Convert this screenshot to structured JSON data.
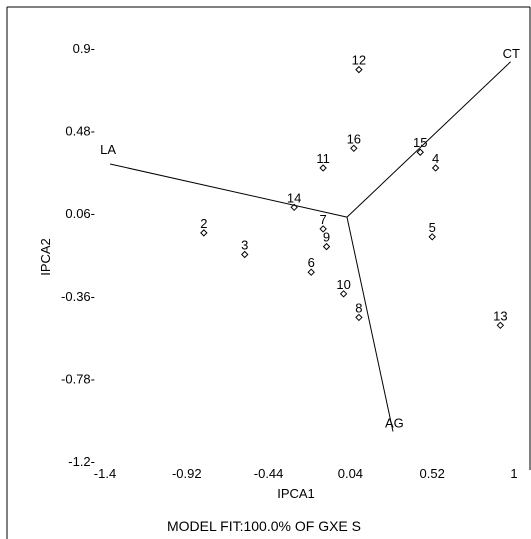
{
  "chart_data": {
    "type": "scatter",
    "subtype": "biplot",
    "title": "",
    "xlabel": "IPCA1",
    "ylabel": "IPCA2",
    "footer": "MODEL FIT:100.0% OF GXE S",
    "xlim": [
      -1.4,
      1.0
    ],
    "ylim": [
      -1.2,
      0.9
    ],
    "x_ticks": [
      "-1.4",
      "-0.92",
      "-0.44",
      "0.04",
      "0.52",
      "1"
    ],
    "x_tick_values": [
      -1.4,
      -0.92,
      -0.44,
      0.04,
      0.52,
      1.0
    ],
    "y_ticks": [
      "0.9",
      "0.48",
      "0.06",
      "-0.36",
      "-0.78",
      "-1.2"
    ],
    "y_tick_values": [
      0.9,
      0.48,
      0.06,
      -0.36,
      -0.78,
      -1.2
    ],
    "origin": [
      0.02,
      0.04
    ],
    "genotypes": [
      {
        "label": "2",
        "x": -0.82,
        "y": -0.04
      },
      {
        "label": "3",
        "x": -0.58,
        "y": -0.15
      },
      {
        "label": "4",
        "x": 0.54,
        "y": 0.29
      },
      {
        "label": "5",
        "x": 0.52,
        "y": -0.06
      },
      {
        "label": "6",
        "x": -0.19,
        "y": -0.24
      },
      {
        "label": "7",
        "x": -0.12,
        "y": -0.02
      },
      {
        "label": "8",
        "x": 0.09,
        "y": -0.47
      },
      {
        "label": "9",
        "x": -0.1,
        "y": -0.11
      },
      {
        "label": "10",
        "x": 0.0,
        "y": -0.35
      },
      {
        "label": "11",
        "x": -0.12,
        "y": 0.29
      },
      {
        "label": "12",
        "x": 0.09,
        "y": 0.79
      },
      {
        "label": "13",
        "x": 0.92,
        "y": -0.51
      },
      {
        "label": "14",
        "x": -0.29,
        "y": 0.09
      },
      {
        "label": "15",
        "x": 0.45,
        "y": 0.37
      },
      {
        "label": "16",
        "x": 0.06,
        "y": 0.39
      }
    ],
    "environments": [
      {
        "label": "LA",
        "x": -1.37,
        "y": 0.31
      },
      {
        "label": "CT",
        "x": 0.98,
        "y": 0.83
      },
      {
        "label": "AG",
        "x": 0.29,
        "y": -1.05
      }
    ]
  }
}
